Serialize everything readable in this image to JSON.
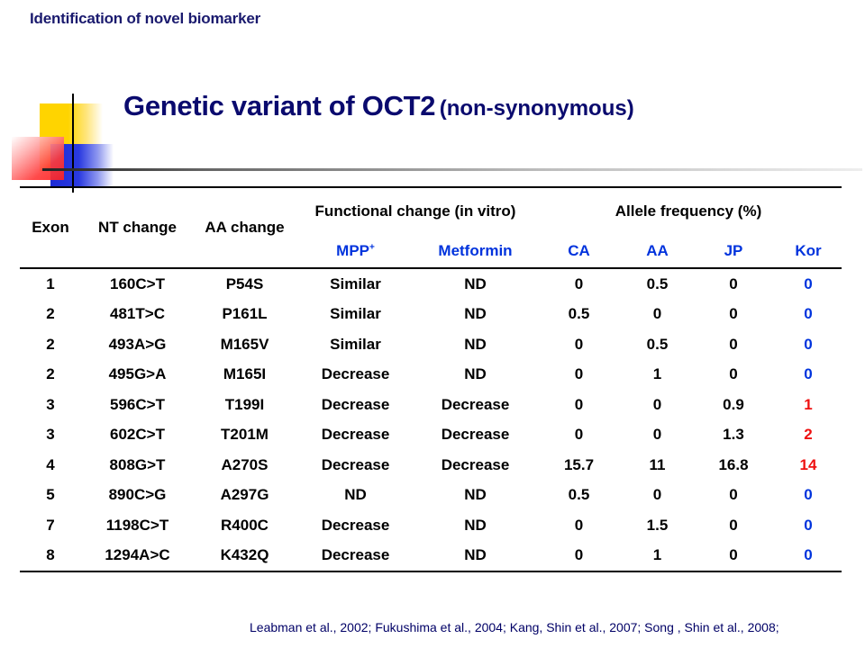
{
  "header": {
    "text": "Identification of novel biomarker"
  },
  "title": {
    "main": "Genetic variant of OCT2",
    "sub": "(non-synonymous)"
  },
  "table": {
    "headers": {
      "exon": "Exon",
      "nt_change": "NT change",
      "aa_change": "AA change",
      "functional_change": "Functional change (in vitro)",
      "allele_frequency": "Allele frequency (%)",
      "mpp": "MPP",
      "mpp_sup": "+",
      "metformin": "Metformin",
      "ca": "CA",
      "aa": "AA",
      "jp": "JP",
      "kor": "Kor"
    },
    "rows": [
      [
        "1",
        "160C>T",
        "P54S",
        "Similar",
        "ND",
        "0",
        "0.5",
        "0",
        "0"
      ],
      [
        "2",
        "481T>C",
        "P161L",
        "Similar",
        "ND",
        "0.5",
        "0",
        "0",
        "0"
      ],
      [
        "2",
        "493A>G",
        "M165V",
        "Similar",
        "ND",
        "0",
        "0.5",
        "0",
        "0"
      ],
      [
        "2",
        "495G>A",
        "M165I",
        "Decrease",
        "ND",
        "0",
        "1",
        "0",
        "0"
      ],
      [
        "3",
        "596C>T",
        "T199I",
        "Decrease",
        "Decrease",
        "0",
        "0",
        "0.9",
        "1"
      ],
      [
        "3",
        "602C>T",
        "T201M",
        "Decrease",
        "Decrease",
        "0",
        "0",
        "1.3",
        "2"
      ],
      [
        "4",
        "808G>T",
        "A270S",
        "Decrease",
        "Decrease",
        "15.7",
        "11",
        "16.8",
        "14"
      ],
      [
        "5",
        "890C>G",
        "A297G",
        "ND",
        "ND",
        "0.5",
        "0",
        "0",
        "0"
      ],
      [
        "7",
        "1198C>T",
        "R400C",
        "Decrease",
        "ND",
        "0",
        "1.5",
        "0",
        "0"
      ],
      [
        "8",
        "1294A>C",
        "K432Q",
        "Decrease",
        "ND",
        "0",
        "1",
        "0",
        "0"
      ]
    ],
    "kor_colors": [
      "blue",
      "blue",
      "blue",
      "blue",
      "red",
      "red",
      "red",
      "blue",
      "blue",
      "blue"
    ]
  },
  "citation": "Leabman et al., 2002; Fukushima et al., 2004; Kang, Shin et al., 2007; Song , Shin  et al., 2008;",
  "colors": {
    "title": "#0a0a6e",
    "header_blue": "#0033dd",
    "kor_red": "#ee1111",
    "kor_blue": "#0033dd"
  }
}
